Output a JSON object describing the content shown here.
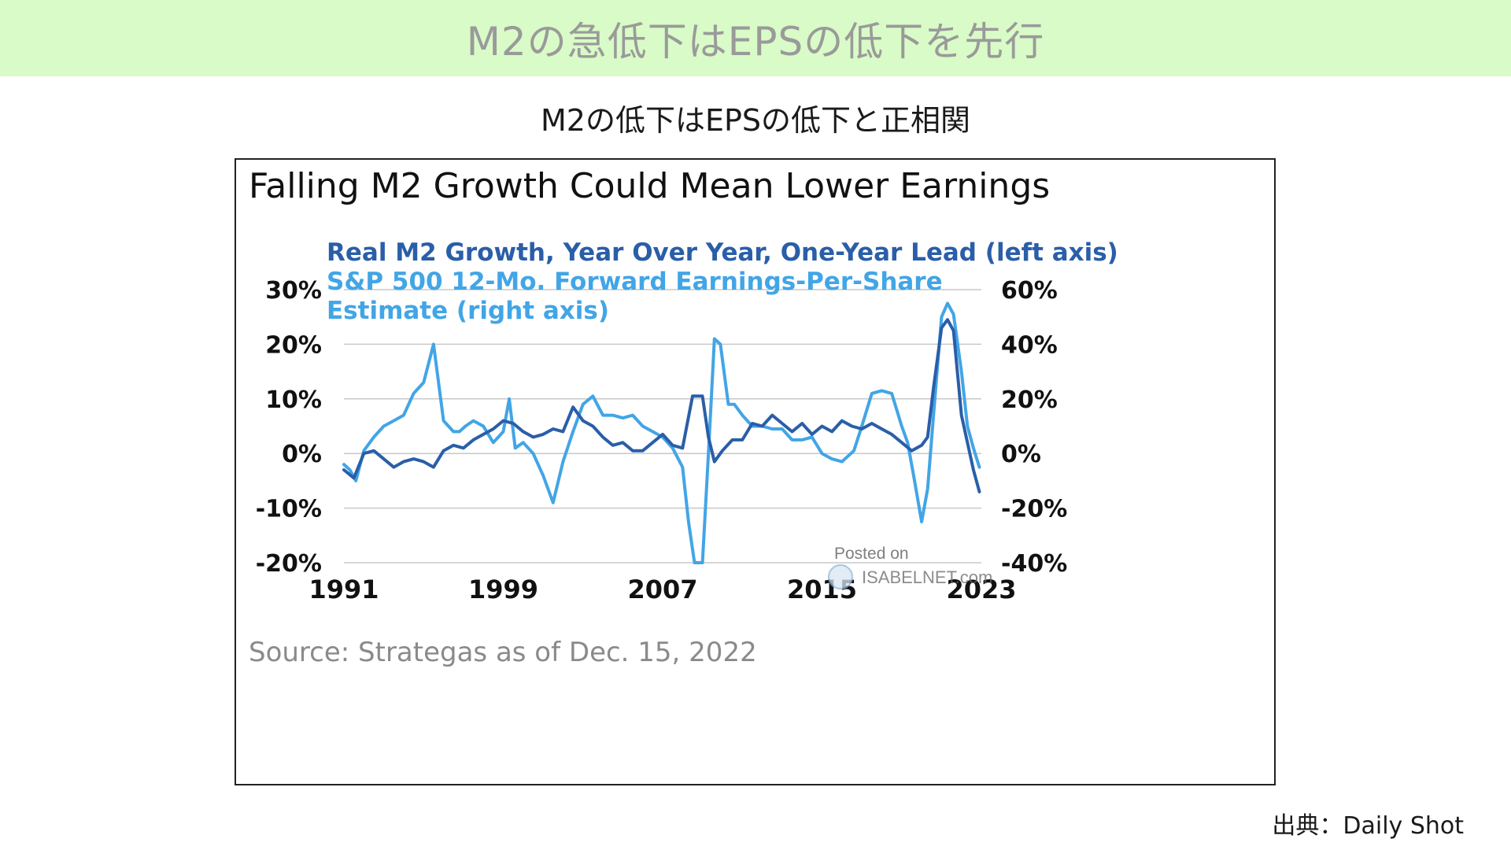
{
  "banner": {
    "title": "M2の急低下はEPSの低下を先行"
  },
  "subtitle": "M2の低下はEPSの低下と正相関",
  "credit": "出典：Daily Shot",
  "colors": {
    "banner_bg": "#d9fbc7",
    "m2": "#2a5ea8",
    "eps": "#42a5e6",
    "grid": "#c8c8c8"
  },
  "chart_data": {
    "type": "line",
    "title": "Falling M2 Growth Could Mean Lower Earnings",
    "source": "Source: Strategas as of Dec. 15, 2022",
    "watermark": {
      "line1": "Posted on",
      "line2": "ISABELNET.com"
    },
    "grid": true,
    "x_ticks": [
      "1991",
      "1999",
      "2007",
      "2015",
      "2023"
    ],
    "xlim": [
      1991,
      2023
    ],
    "left_axis": {
      "ticks": [
        "30%",
        "20%",
        "10%",
        "0%",
        "-10%",
        "-20%"
      ],
      "ylim": [
        -20,
        30
      ]
    },
    "right_axis": {
      "ticks": [
        "60%",
        "40%",
        "20%",
        "0%",
        "-20%",
        "-40%"
      ],
      "ylim": [
        -40,
        60
      ]
    },
    "series": [
      {
        "name": "Real M2 Growth, Year Over Year, One-Year Lead (left axis)",
        "axis": "left",
        "color": "#2a5ea8",
        "x": [
          1991.0,
          1991.5,
          1992.0,
          1992.5,
          1993.0,
          1993.5,
          1994.0,
          1994.5,
          1995.0,
          1995.5,
          1996.0,
          1996.5,
          1997.0,
          1997.5,
          1998.0,
          1998.5,
          1999.0,
          1999.5,
          2000.0,
          2000.5,
          2001.0,
          2001.5,
          2002.0,
          2002.5,
          2003.0,
          2003.5,
          2004.0,
          2004.5,
          2005.0,
          2005.5,
          2006.0,
          2006.5,
          2007.0,
          2007.5,
          2008.0,
          2008.5,
          2009.0,
          2009.3,
          2009.6,
          2010.0,
          2010.5,
          2011.0,
          2011.5,
          2012.0,
          2012.5,
          2013.0,
          2013.5,
          2014.0,
          2014.5,
          2015.0,
          2015.5,
          2016.0,
          2016.5,
          2017.0,
          2017.5,
          2018.0,
          2018.5,
          2019.0,
          2019.5,
          2020.0,
          2020.3,
          2020.6,
          2021.0,
          2021.3,
          2021.6,
          2022.0,
          2022.3,
          2022.6,
          2022.9
        ],
        "y": [
          -3.0,
          -4.5,
          0.0,
          0.5,
          -1.0,
          -2.5,
          -1.5,
          -1.0,
          -1.5,
          -2.5,
          0.5,
          1.5,
          1.0,
          2.5,
          3.5,
          4.5,
          6.0,
          5.5,
          4.0,
          3.0,
          3.5,
          4.5,
          4.0,
          8.5,
          6.0,
          5.0,
          3.0,
          1.5,
          2.0,
          0.5,
          0.5,
          2.0,
          3.5,
          1.5,
          1.0,
          10.5,
          10.5,
          3.0,
          -1.5,
          0.5,
          2.5,
          2.5,
          5.5,
          5.0,
          7.0,
          5.5,
          4.0,
          5.5,
          3.5,
          5.0,
          4.0,
          6.0,
          5.0,
          4.5,
          5.5,
          4.5,
          3.5,
          2.0,
          0.5,
          1.5,
          3.0,
          12.0,
          23.0,
          24.5,
          22.5,
          7.0,
          2.0,
          -3.0,
          -7.0
        ]
      },
      {
        "name": "S&P 500 12-Mo. Forward Earnings-Per-Share Estimate (right axis)",
        "axis": "right",
        "color": "#42a5e6",
        "x": [
          1991.0,
          1991.3,
          1991.6,
          1992.0,
          1992.5,
          1993.0,
          1993.5,
          1994.0,
          1994.5,
          1995.0,
          1995.5,
          1996.0,
          1996.5,
          1996.8,
          1997.1,
          1997.5,
          1998.0,
          1998.5,
          1999.0,
          1999.3,
          1999.6,
          2000.0,
          2000.5,
          2001.0,
          2001.5,
          2002.0,
          2002.5,
          2003.0,
          2003.5,
          2004.0,
          2004.5,
          2005.0,
          2005.5,
          2006.0,
          2006.5,
          2007.0,
          2007.5,
          2008.0,
          2008.3,
          2008.6,
          2009.0,
          2009.3,
          2009.6,
          2009.9,
          2010.3,
          2010.6,
          2011.0,
          2011.5,
          2012.0,
          2012.5,
          2013.0,
          2013.5,
          2014.0,
          2014.5,
          2015.0,
          2015.5,
          2016.0,
          2016.3,
          2016.6,
          2017.0,
          2017.5,
          2018.0,
          2018.5,
          2019.0,
          2019.3,
          2019.6,
          2020.0,
          2020.3,
          2020.6,
          2021.0,
          2021.3,
          2021.6,
          2022.0,
          2022.3,
          2022.6,
          2022.9
        ],
        "y": [
          -4.0,
          -6.0,
          -10.0,
          1.0,
          6.0,
          10.0,
          12.0,
          14.0,
          22.0,
          26.0,
          40.0,
          12.0,
          8.0,
          8.0,
          10.0,
          12.0,
          10.0,
          4.0,
          8.0,
          20.0,
          2.0,
          4.0,
          0.0,
          -8.0,
          -18.0,
          -3.0,
          8.0,
          18.0,
          21.0,
          14.0,
          14.0,
          13.0,
          14.0,
          10.0,
          8.0,
          6.0,
          2.0,
          -5.0,
          -25.0,
          -40.0,
          -40.0,
          0.0,
          42.0,
          40.0,
          18.0,
          18.0,
          14.0,
          10.0,
          10.0,
          9.0,
          9.0,
          5.0,
          5.0,
          6.0,
          0.0,
          -2.0,
          -3.0,
          -1.0,
          1.0,
          10.0,
          22.0,
          23.0,
          22.0,
          10.0,
          4.0,
          -8.0,
          -25.0,
          -13.0,
          14.0,
          50.0,
          55.0,
          51.0,
          30.0,
          10.0,
          2.0,
          -5.0
        ]
      }
    ]
  }
}
